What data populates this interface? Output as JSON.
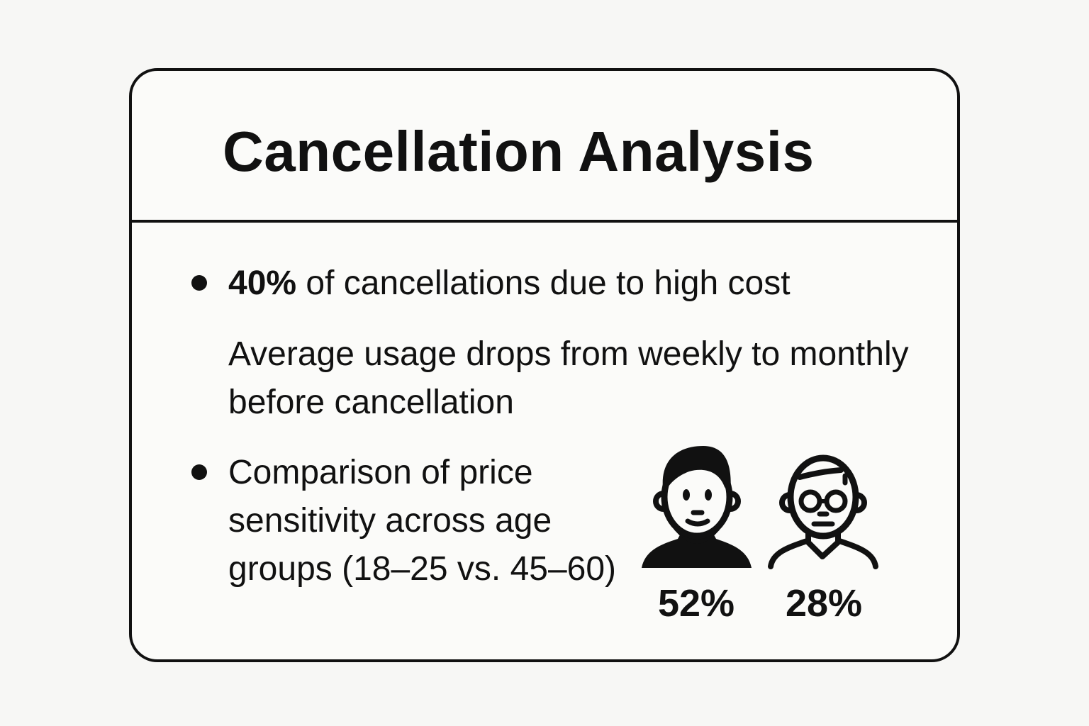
{
  "title": "Cancellation Analysis",
  "points": [
    {
      "bold": "40%",
      "text": " of cancellations due to high cost",
      "bullet": true
    },
    {
      "text": "Average usage drops from weekly to monthly before cancellation",
      "bullet": false
    },
    {
      "text": "Comparison of price sensitivity across age groups (18–25 vs. 45–60)",
      "bullet": true
    }
  ],
  "age_groups": [
    {
      "icon": "young-person-icon",
      "value": "52%"
    },
    {
      "icon": "older-person-with-glasses-icon",
      "value": "28%"
    }
  ]
}
